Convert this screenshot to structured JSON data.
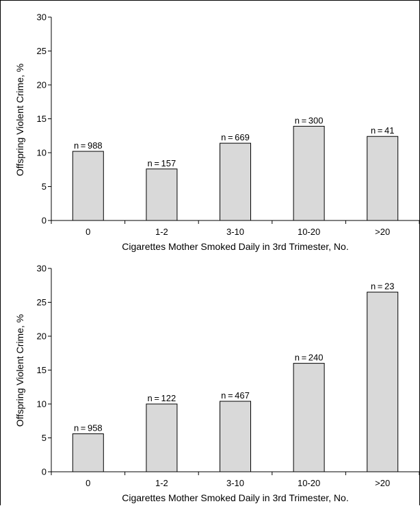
{
  "chart_data": [
    {
      "type": "bar",
      "xlabel": "Cigarettes Mother Smoked Daily in 3rd Trimester, No.",
      "ylabel": "Offspring Violent Crime, %",
      "categories": [
        "0",
        "1-2",
        "3-10",
        "10-20",
        ">20"
      ],
      "values": [
        10.2,
        7.6,
        11.4,
        13.9,
        12.4
      ],
      "data_labels": [
        "n = 988",
        "n = 157",
        "n = 669",
        "n = 300",
        "n = 41"
      ],
      "ylim": [
        0,
        30
      ],
      "yticks": [
        0,
        5,
        10,
        15,
        20,
        25,
        30
      ],
      "grid": false,
      "bar_color": "#d9d9d9"
    },
    {
      "type": "bar",
      "xlabel": "Cigarettes Mother Smoked Daily in 3rd Trimester, No.",
      "ylabel": "Offspring Violent Crime, %",
      "categories": [
        "0",
        "1-2",
        "3-10",
        "10-20",
        ">20"
      ],
      "values": [
        5.6,
        10.0,
        10.4,
        16.0,
        26.5
      ],
      "data_labels": [
        "n = 958",
        "n = 122",
        "n = 467",
        "n = 240",
        "n = 23"
      ],
      "ylim": [
        0,
        30
      ],
      "yticks": [
        0,
        5,
        10,
        15,
        20,
        25,
        30
      ],
      "grid": false,
      "bar_color": "#d9d9d9"
    }
  ]
}
